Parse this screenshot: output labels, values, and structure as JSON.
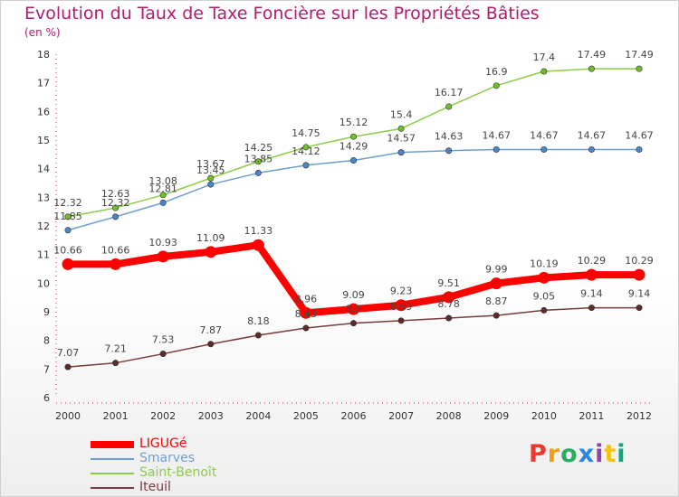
{
  "header": {
    "title": "Evolution du Taux de Taxe Foncière sur les Propriétés Bâties",
    "unit": "(en %)"
  },
  "logo": {
    "text": "Proxiti",
    "colors": [
      "#e8392b",
      "#f39c12",
      "#27ae60",
      "#2e86de",
      "#8e44ad",
      "#f1c40f",
      "#16a085"
    ]
  },
  "chart_data": {
    "type": "line",
    "title": "Evolution du Taux de Taxe Foncière sur les Propriétés Bâties",
    "ylabel": "(en %)",
    "xlabel": "",
    "x": [
      "2000",
      "2001",
      "2002",
      "2003",
      "2004",
      "2005",
      "2006",
      "2007",
      "2008",
      "2009",
      "2010",
      "2011",
      "2012"
    ],
    "ylim": [
      6,
      18
    ],
    "yticks": [
      "6",
      "7",
      "8",
      "9",
      "10",
      "11",
      "12",
      "13",
      "14",
      "15",
      "16",
      "17",
      "18"
    ],
    "grid": false,
    "legend": "bottom-left",
    "series": [
      {
        "name": "Saint-Benoît",
        "color": "#8ccc46",
        "marker": "#6fbf2a",
        "width": 1.5,
        "values": [
          12.32,
          12.63,
          13.08,
          13.67,
          14.25,
          14.75,
          15.12,
          15.4,
          16.17,
          16.9,
          17.4,
          17.49,
          17.49
        ],
        "labels": [
          "12.32",
          "12.63",
          "13.08",
          "13.67",
          "14.25",
          "14.75",
          "15.12",
          "15.4",
          "16.17",
          "16.9",
          "17.4",
          "17.49",
          "17.49"
        ]
      },
      {
        "name": "Smarves",
        "color": "#6f9fd0",
        "marker": "#4a86c5",
        "width": 1.5,
        "values": [
          11.85,
          12.32,
          12.81,
          13.45,
          13.85,
          14.12,
          14.29,
          14.57,
          14.63,
          14.67,
          14.67,
          14.67,
          14.67
        ],
        "labels": [
          "11.85",
          "12.32",
          "12.81",
          "13.45",
          "13.85",
          "14.12",
          "14.29",
          "14.57",
          "14.63",
          "14.67",
          "14.67",
          "14.67",
          "14.67"
        ]
      },
      {
        "name": "Iteuil",
        "color": "#7a3b3b",
        "marker": "#5e2a2a",
        "width": 1.5,
        "values": [
          7.07,
          7.21,
          7.53,
          7.87,
          8.18,
          8.43,
          8.6,
          8.69,
          8.78,
          8.87,
          9.05,
          9.14,
          9.14
        ],
        "labels": [
          "7.07",
          "7.21",
          "7.53",
          "7.87",
          "8.18",
          "8.43",
          "8.6",
          "8.69",
          "8.78",
          "8.87",
          "9.05",
          "9.14",
          "9.14"
        ]
      },
      {
        "name": "LIGUGé",
        "color": "#ff0000",
        "marker": "#ff0000",
        "width": 8,
        "values": [
          10.66,
          10.66,
          10.93,
          11.09,
          11.33,
          8.96,
          9.09,
          9.23,
          9.51,
          9.99,
          10.19,
          10.29,
          10.29
        ],
        "labels": [
          "10.66",
          "10.66",
          "10.93",
          "11.09",
          "11.33",
          "8.96",
          "9.09",
          "9.23",
          "9.51",
          "9.99",
          "10.19",
          "10.29",
          "10.29"
        ]
      }
    ],
    "legend_order": [
      "LIGUGé",
      "Smarves",
      "Saint-Benoît",
      "Iteuil"
    ]
  }
}
